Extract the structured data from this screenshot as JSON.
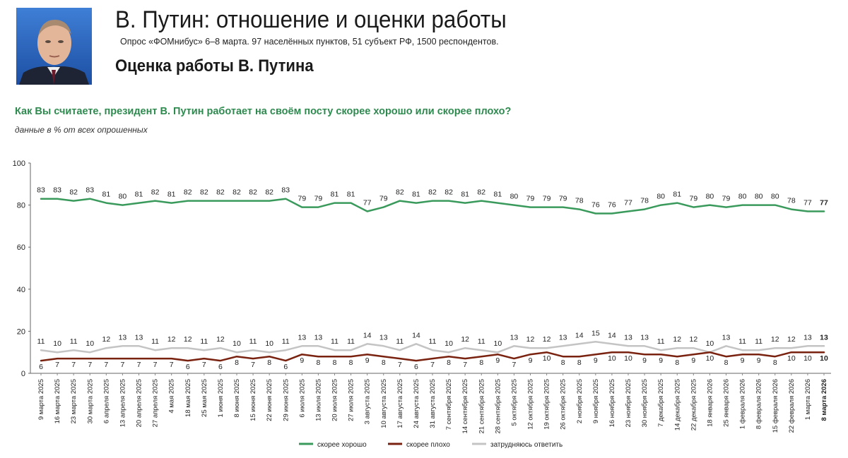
{
  "header": {
    "title": "В. Путин: отношение и оценки работы",
    "subtitle": "Опрос «ФОМнибус» 6–8 марта. 97 населённых пунктов, 51 субъект РФ, 1500 респондентов.",
    "section": "Оценка работы В. Путина",
    "question": "Как Вы считаете, президент В. Путин работает на своём посту скорее хорошо или скорее плохо?",
    "note": "данные в % от всех опрошенных"
  },
  "colors": {
    "good": "#3a9a5c",
    "bad": "#7a2210",
    "hard": "#c4c4c4",
    "question": "#2e8a4f"
  },
  "chart_data": {
    "type": "line",
    "ylim": [
      0,
      100
    ],
    "yticks": [
      0,
      20,
      40,
      60,
      80,
      100
    ],
    "grid": false,
    "legend_position": "bottom",
    "categories": [
      "9 марта 2025",
      "16 марта 2025",
      "23 марта 2025",
      "30 марта 2025",
      "6 апреля 2025",
      "13 апреля 2025",
      "20 апреля 2025",
      "27 апреля 2025",
      "4 мая 2025",
      "18 мая 2025",
      "25 мая 2025",
      "1 июня 2025",
      "8 июня 2025",
      "15 июня 2025",
      "22 июня 2025",
      "29 июня 2025",
      "6 июля 2025",
      "13 июля 2025",
      "20 июля 2025",
      "27 июля 2025",
      "3 августа 2025",
      "10 августа 2025",
      "17 августа 2025",
      "24 августа 2025",
      "31 августа 2025",
      "7 сентября 2025",
      "14 сентября 2025",
      "21 сентября 2025",
      "28 сентября 2025",
      "5 октября 2025",
      "12 октября 2025",
      "19 октября 2025",
      "26 октября 2025",
      "2 ноября 2025",
      "9 ноября 2025",
      "16 ноября 2025",
      "23 ноября 2025",
      "30 ноября 2025",
      "7 декабря 2025",
      "14 декабря 2025",
      "22 декабря 2025",
      "18 января 2026",
      "25 января 2026",
      "1 февраля 2026",
      "8 февраля 2026",
      "15 февраля 2026",
      "22 февраля 2026",
      "1 марта 2026",
      "8 марта 2026"
    ],
    "series": [
      {
        "name": "скорее хорошо",
        "key": "good",
        "values": [
          83,
          83,
          82,
          83,
          81,
          80,
          81,
          82,
          81,
          82,
          82,
          82,
          82,
          82,
          82,
          83,
          79,
          79,
          81,
          81,
          77,
          79,
          82,
          81,
          82,
          82,
          81,
          82,
          81,
          80,
          79,
          79,
          79,
          78,
          76,
          76,
          77,
          78,
          80,
          81,
          79,
          80,
          79,
          80,
          80,
          80,
          78,
          77,
          77
        ]
      },
      {
        "name": "скорее плохо",
        "key": "bad",
        "values": [
          6,
          7,
          7,
          7,
          7,
          7,
          7,
          7,
          7,
          6,
          7,
          6,
          8,
          7,
          8,
          6,
          9,
          8,
          8,
          8,
          9,
          8,
          7,
          6,
          7,
          8,
          7,
          8,
          9,
          7,
          9,
          10,
          8,
          8,
          9,
          10,
          10,
          9,
          9,
          8,
          9,
          10,
          8,
          9,
          9,
          8,
          10,
          10,
          10
        ]
      },
      {
        "name": "затрудняюсь ответить",
        "key": "hard",
        "values": [
          11,
          10,
          11,
          10,
          12,
          13,
          13,
          11,
          12,
          12,
          11,
          12,
          10,
          11,
          10,
          11,
          13,
          13,
          11,
          11,
          14,
          13,
          11,
          14,
          11,
          10,
          12,
          11,
          10,
          13,
          12,
          12,
          13,
          14,
          15,
          14,
          13,
          13,
          11,
          12,
          12,
          10,
          13,
          11,
          11,
          12,
          12,
          13,
          13
        ]
      }
    ]
  }
}
